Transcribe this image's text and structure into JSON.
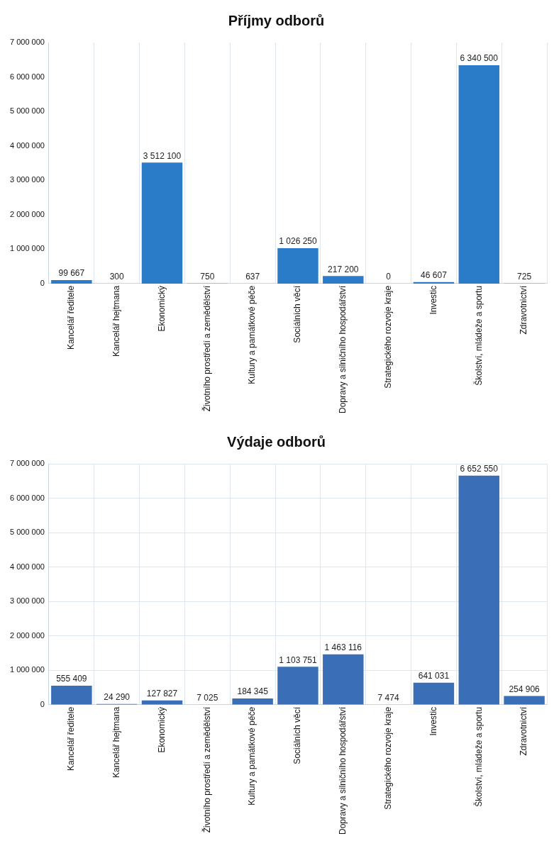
{
  "chart_data": [
    {
      "type": "bar",
      "title": "Příjmy odborů",
      "categories": [
        "Kancelář ředitele",
        "Kancelář hejtmana",
        "Ekonomický",
        "Životního prostředí a zemědělství",
        "Kultury a památkové péče",
        "Sociálních věcí",
        "Dopravy a silničního hospodářství",
        "Strategického rozvoje kraje",
        "Investic",
        "Školství, mládeže a sportu",
        "Zdravotnictví"
      ],
      "values": [
        99667,
        300,
        3512100,
        750,
        637,
        1026250,
        217200,
        0,
        46607,
        6340500,
        725
      ],
      "value_labels": [
        "99 667",
        "300",
        "3 512 100",
        "750",
        "637",
        "1 026 250",
        "217 200",
        "0",
        "46 607",
        "6 340 500",
        "725"
      ],
      "color": "#2a7cc8",
      "ylim": [
        0,
        7000000
      ],
      "yticks": [
        {
          "value": 0,
          "label": "0"
        },
        {
          "value": 1000000,
          "label": "1 000 000"
        },
        {
          "value": 2000000,
          "label": "2 000 000"
        },
        {
          "value": 3000000,
          "label": "3 000 000"
        },
        {
          "value": 4000000,
          "label": "4 000 000"
        },
        {
          "value": 5000000,
          "label": "5 000 000"
        },
        {
          "value": 6000000,
          "label": "6 000 000"
        },
        {
          "value": 7000000,
          "label": "7 000 000"
        }
      ],
      "grid": "x",
      "legend": false
    },
    {
      "type": "bar",
      "title": "Výdaje odborů",
      "categories": [
        "Kancelář ředitele",
        "Kancelář hejtmana",
        "Ekonomický",
        "Životního prostředí a zemědělství",
        "Kultury a památkové péče",
        "Sociálních věcí",
        "Dopravy a silničního hospodářství",
        "Strategického rozvoje kraje",
        "Investic",
        "Školství, mládeže a sportu",
        "Zdravotnictví"
      ],
      "values": [
        555409,
        24290,
        127827,
        7025,
        184345,
        1103751,
        1463116,
        7474,
        641031,
        6652550,
        254906
      ],
      "value_labels": [
        "555 409",
        "24 290",
        "127 827",
        "7 025",
        "184 345",
        "1 103 751",
        "1 463 116",
        "7 474",
        "641 031",
        "6 652 550",
        "254 906"
      ],
      "color": "#3a6fb8",
      "ylim": [
        0,
        7000000
      ],
      "yticks": [
        {
          "value": 0,
          "label": "0"
        },
        {
          "value": 1000000,
          "label": "1 000 000"
        },
        {
          "value": 2000000,
          "label": "2 000 000"
        },
        {
          "value": 3000000,
          "label": "3 000 000"
        },
        {
          "value": 4000000,
          "label": "4 000 000"
        },
        {
          "value": 5000000,
          "label": "5 000 000"
        },
        {
          "value": 6000000,
          "label": "6 000 000"
        },
        {
          "value": 7000000,
          "label": "7 000 000"
        }
      ],
      "grid": true,
      "legend": false
    }
  ]
}
